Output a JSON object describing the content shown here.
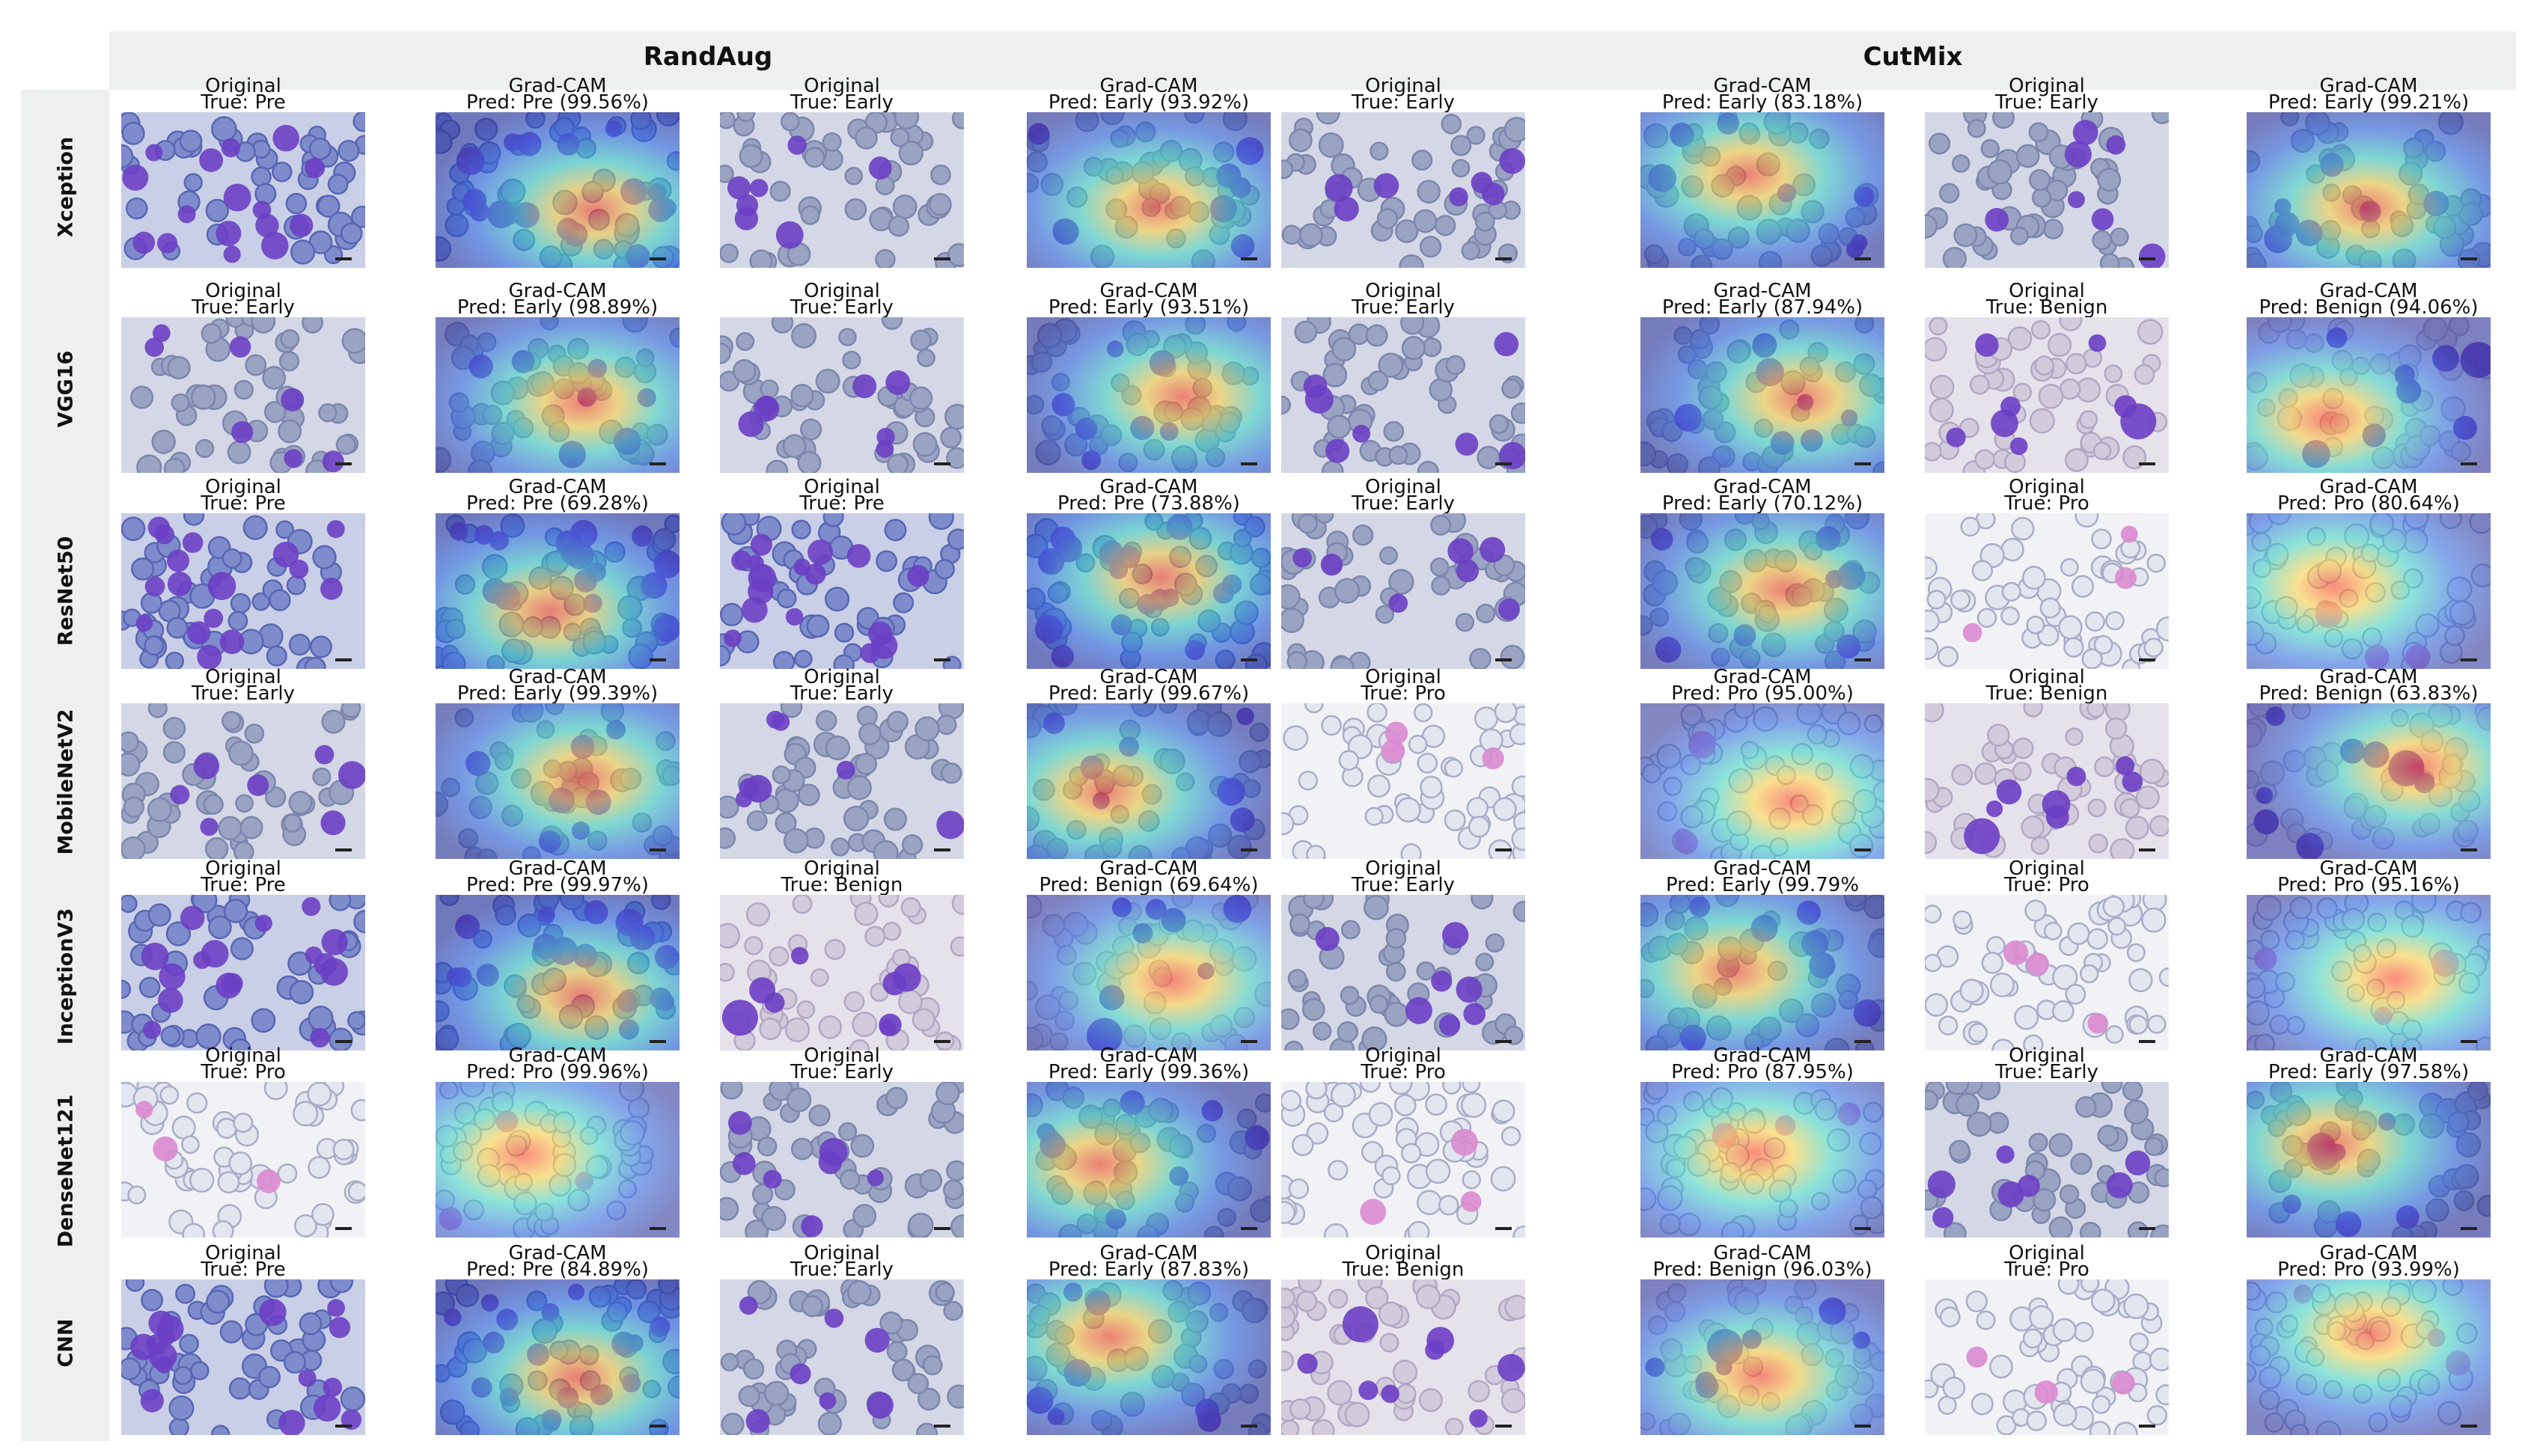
{
  "headers": [
    "RandAug",
    "CutMix"
  ],
  "models": [
    "Xception",
    "VGG16",
    "ResNet50",
    "MobileNetV2",
    "InceptionV3",
    "DenseNet121",
    "CNN"
  ],
  "orig_label": "Original",
  "gradcam_label": "Grad-CAM",
  "rows": [
    {
      "pairs": [
        {
          "true": "True: Pre",
          "pred": "Pred: Pre (99.56%)",
          "cls": "Pre"
        },
        {
          "true": "True: Early",
          "pred": "Pred: Early (93.92%)",
          "cls": "Early"
        },
        {
          "true": "True: Early",
          "pred": "Pred: Early (83.18%)",
          "cls": "Early"
        },
        {
          "true": "True: Early",
          "pred": "Pred: Early (99.21%)",
          "cls": "Early"
        }
      ]
    },
    {
      "pairs": [
        {
          "true": "True: Early",
          "pred": "Pred: Early (98.89%)",
          "cls": "Early"
        },
        {
          "true": "True: Early",
          "pred": "Pred: Early (93.51%)",
          "cls": "Early"
        },
        {
          "true": "True: Early",
          "pred": "Pred: Early (87.94%)",
          "cls": "Early"
        },
        {
          "true": "True: Benign",
          "pred": "Pred: Benign (94.06%)",
          "cls": "Benign"
        }
      ]
    },
    {
      "pairs": [
        {
          "true": "True: Pre",
          "pred": "Pred: Pre (69.28%)",
          "cls": "Pre"
        },
        {
          "true": "True: Pre",
          "pred": "Pred: Pre (73.88%)",
          "cls": "Pre"
        },
        {
          "true": "True: Early",
          "pred": "Pred: Early (70.12%)",
          "cls": "Early"
        },
        {
          "true": "True: Pro",
          "pred": "Pred: Pro (80.64%)",
          "cls": "Pro"
        }
      ]
    },
    {
      "pairs": [
        {
          "true": "True: Early",
          "pred": "Pred: Early (99.39%)",
          "cls": "Early"
        },
        {
          "true": "True: Early",
          "pred": "Pred: Early (99.67%)",
          "cls": "Early"
        },
        {
          "true": "True: Pro",
          "pred": "Pred: Pro (95.00%)",
          "cls": "Pro"
        },
        {
          "true": "True: Benign",
          "pred": "Pred: Benign (63.83%)",
          "cls": "Benign"
        }
      ]
    },
    {
      "pairs": [
        {
          "true": "True: Pre",
          "pred": "Pred: Pre (99.97%)",
          "cls": "Pre"
        },
        {
          "true": "True: Benign",
          "pred": "Pred: Benign (69.64%)",
          "cls": "Benign"
        },
        {
          "true": "True: Early",
          "pred": "Pred: Early (99.79%",
          "cls": "Early"
        },
        {
          "true": "True: Pro",
          "pred": "Pred: Pro (95.16%)",
          "cls": "Pro"
        }
      ]
    },
    {
      "pairs": [
        {
          "true": "True: Pro",
          "pred": "Pred: Pro (99.96%)",
          "cls": "Pro"
        },
        {
          "true": "True: Early",
          "pred": "Pred: Early (99.36%)",
          "cls": "Early"
        },
        {
          "true": "True: Pro",
          "pred": "Pred: Pro (87.95%)",
          "cls": "Pro"
        },
        {
          "true": "True: Early",
          "pred": "Pred: Early (97.58%)",
          "cls": "Early"
        }
      ]
    },
    {
      "pairs": [
        {
          "true": "True: Pre",
          "pred": "Pred: Pre (84.89%)",
          "cls": "Pre"
        },
        {
          "true": "True: Early",
          "pred": "Pred: Early (87.83%)",
          "cls": "Early"
        },
        {
          "true": "True: Benign",
          "pred": "Pred: Benign (96.03%)",
          "cls": "Benign"
        },
        {
          "true": "True: Pro",
          "pred": "Pred: Pro (93.99%)",
          "cls": "Pro"
        }
      ]
    }
  ]
}
